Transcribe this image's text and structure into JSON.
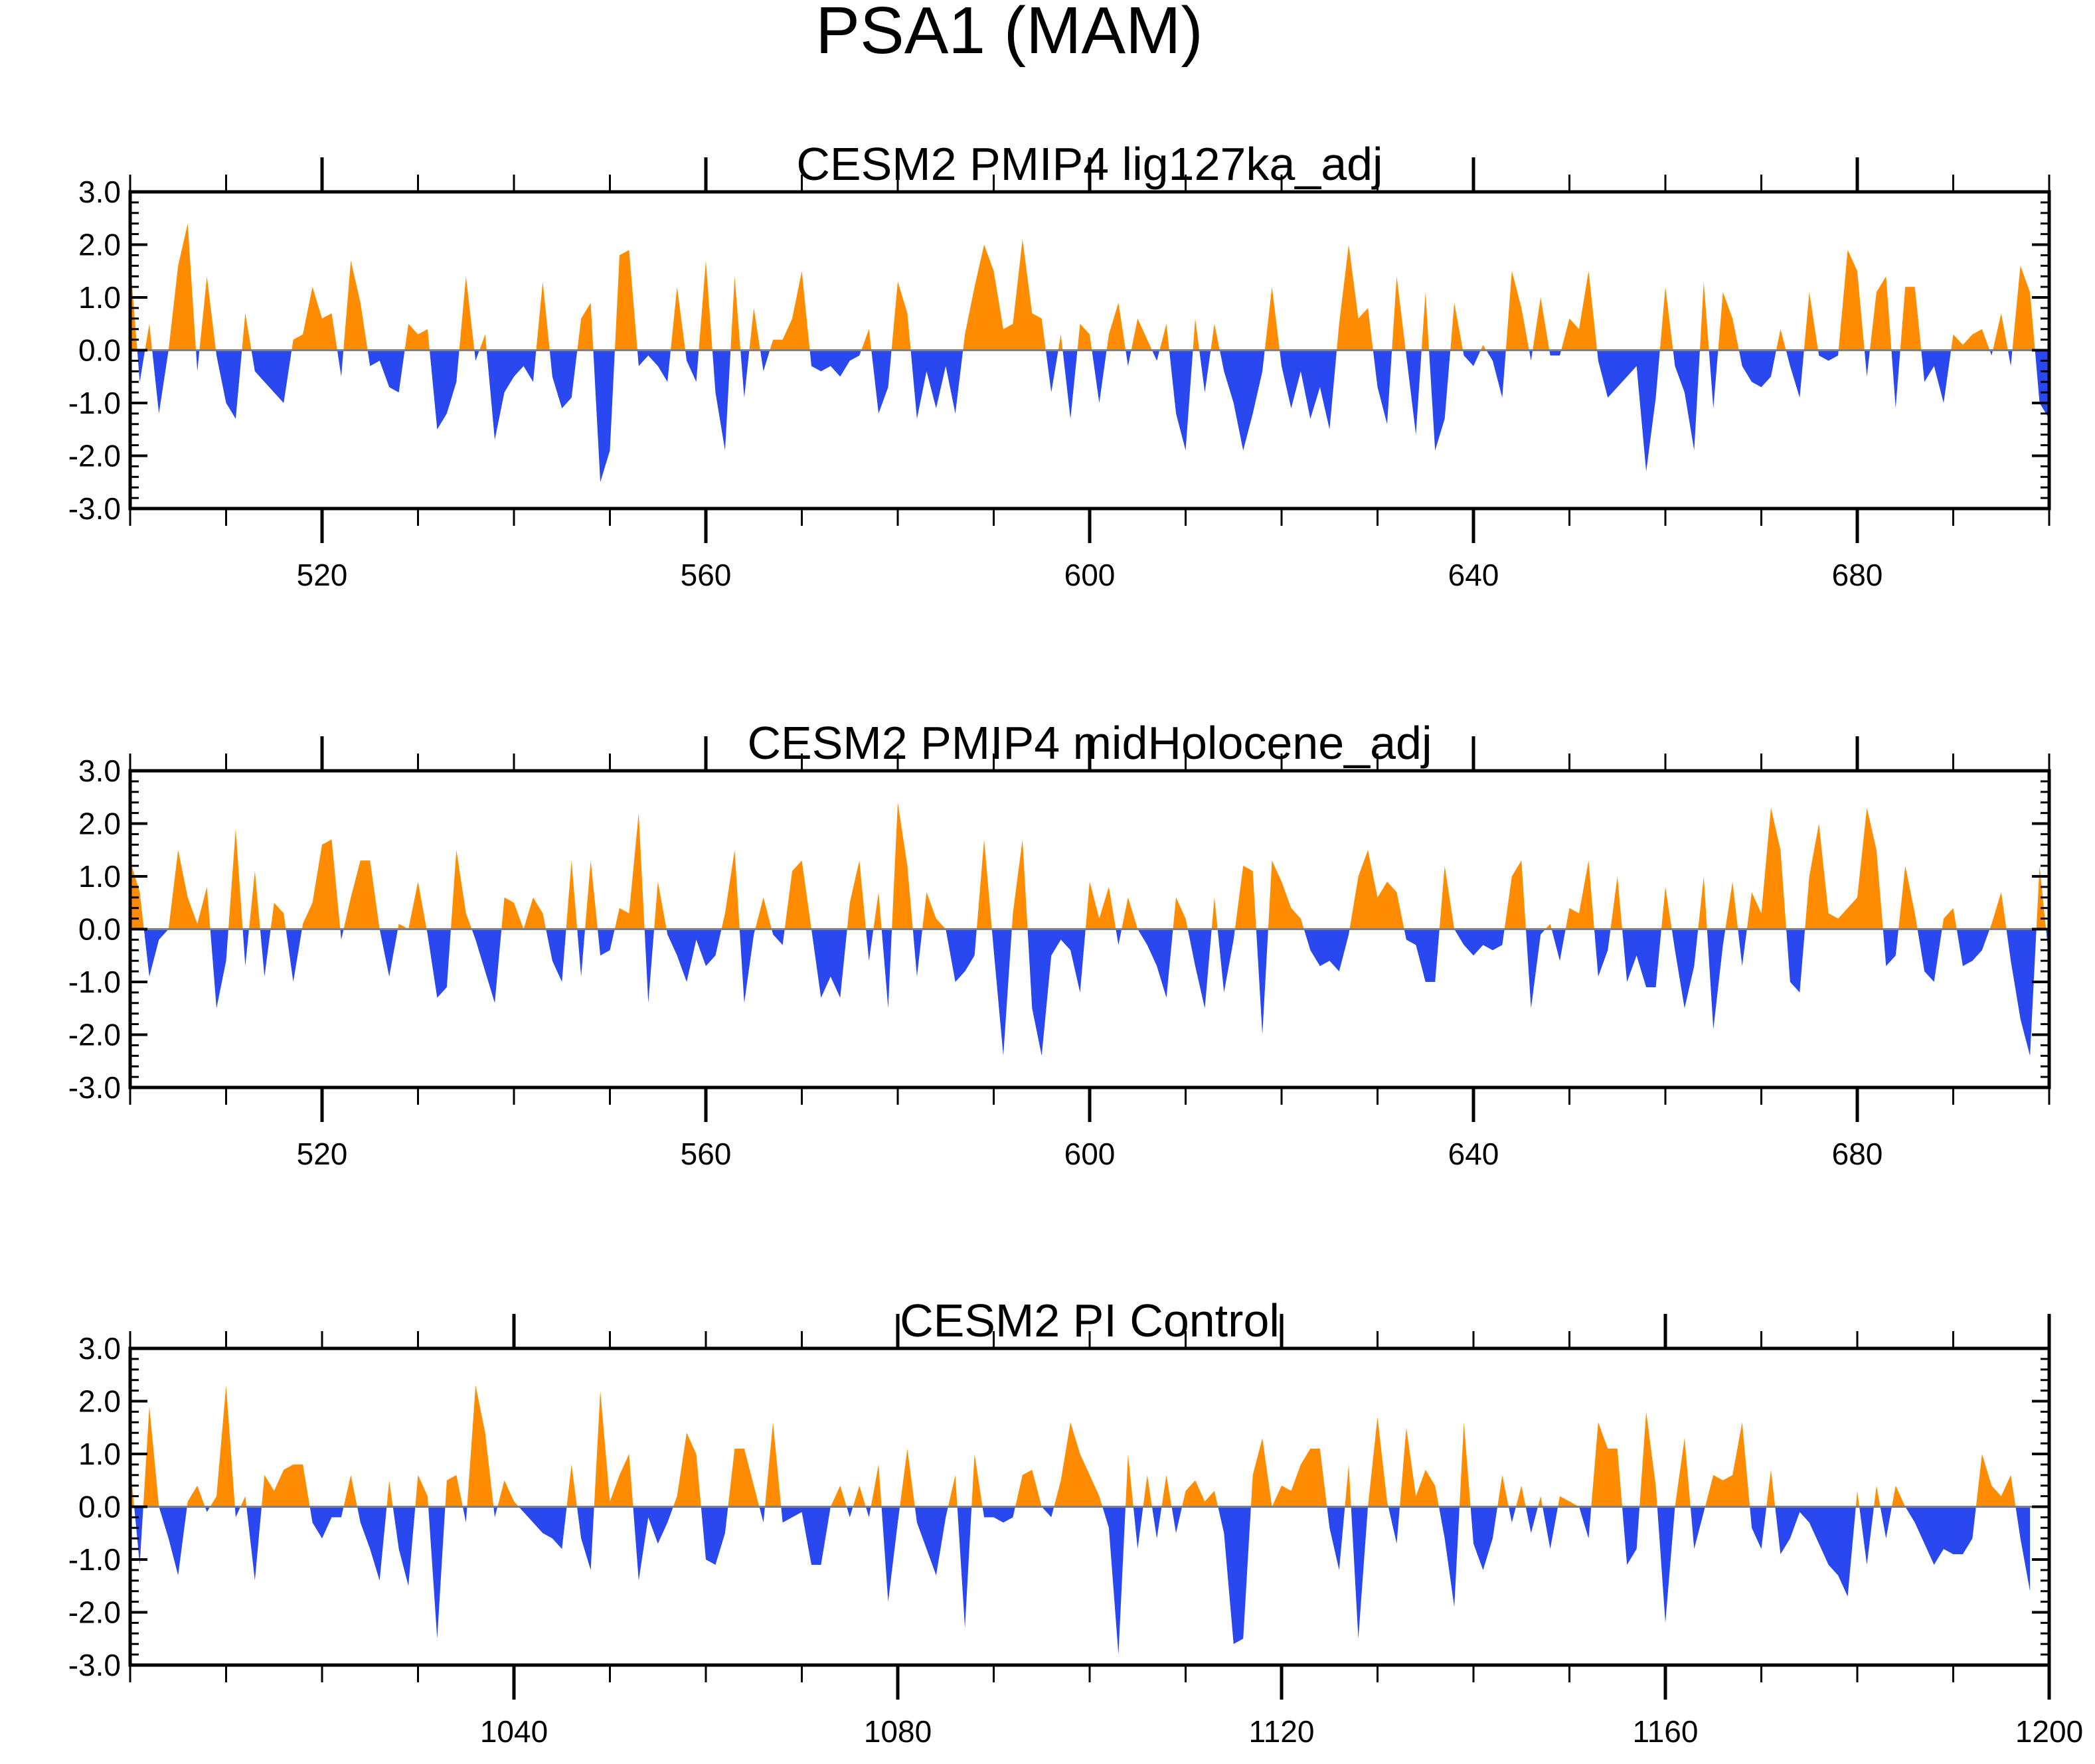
{
  "title": "PSA1 (MAM)",
  "colors": {
    "positive": "#ff8c00",
    "negative": "#2a48f0",
    "zero_line": "#808080"
  },
  "chart_data": [
    {
      "type": "area",
      "title": "CESM2 PMIP4 lig127ka_adj",
      "x_range": [
        500,
        700
      ],
      "x_major_ticks": [
        520,
        560,
        600,
        640,
        680
      ],
      "x_tick_labels": [
        "520",
        "560",
        "600",
        "640",
        "680"
      ],
      "ylim": [
        -3.0,
        3.0
      ],
      "y_tick_labels": [
        "3.0",
        "2.0",
        "1.0",
        "0.0",
        "-1.0",
        "-2.0",
        "-3.0"
      ],
      "x_start": 500,
      "values": [
        1.7,
        -0.6,
        0.5,
        -1.2,
        0.0,
        1.6,
        2.4,
        -0.4,
        1.4,
        -0.1,
        -1.0,
        -1.3,
        0.7,
        -0.4,
        -0.6,
        -0.8,
        -1.0,
        0.2,
        0.3,
        1.2,
        0.6,
        0.7,
        -0.5,
        1.7,
        0.9,
        -0.3,
        -0.2,
        -0.7,
        -0.8,
        0.5,
        0.3,
        0.4,
        -1.5,
        -1.2,
        -0.6,
        1.4,
        -0.2,
        0.3,
        -1.7,
        -0.8,
        -0.5,
        -0.3,
        -0.6,
        1.3,
        -0.5,
        -1.1,
        -0.9,
        0.6,
        0.9,
        -2.5,
        -1.9,
        1.8,
        1.9,
        -0.3,
        -0.1,
        -0.3,
        -0.6,
        1.2,
        -0.2,
        -0.6,
        1.7,
        -0.8,
        -1.9,
        1.4,
        -0.9,
        0.8,
        -0.4,
        0.2,
        0.2,
        0.6,
        1.5,
        -0.3,
        -0.4,
        -0.3,
        -0.5,
        -0.2,
        -0.1,
        0.4,
        -1.2,
        -0.7,
        1.3,
        0.7,
        -1.3,
        -0.4,
        -1.1,
        -0.3,
        -1.2,
        0.3,
        1.2,
        2.0,
        1.5,
        0.4,
        0.5,
        2.1,
        0.7,
        0.6,
        -0.8,
        0.3,
        -1.3,
        0.5,
        0.3,
        -1.0,
        0.3,
        0.9,
        -0.3,
        0.6,
        0.2,
        -0.2,
        0.5,
        -1.2,
        -1.9,
        0.6,
        -0.8,
        0.5,
        -0.4,
        -1.0,
        -1.9,
        -1.2,
        -0.4,
        1.2,
        -0.3,
        -1.1,
        -0.4,
        -1.3,
        -0.7,
        -1.5,
        0.5,
        2.0,
        0.6,
        0.8,
        -0.7,
        -1.4,
        1.4,
        -0.1,
        -1.6,
        1.1,
        -1.9,
        -1.3,
        0.9,
        -0.1,
        -0.3,
        0.1,
        -0.2,
        -0.9,
        1.5,
        0.8,
        -0.2,
        1.0,
        -0.1,
        -0.1,
        0.6,
        0.4,
        1.5,
        -0.2,
        -0.9,
        -0.7,
        -0.5,
        -0.3,
        -2.3,
        -0.9,
        1.2,
        -0.3,
        -0.8,
        -1.9,
        1.3,
        -1.1,
        1.1,
        0.6,
        -0.3,
        -0.6,
        -0.7,
        -0.5,
        0.4,
        -0.3,
        -0.9,
        1.1,
        -0.1,
        -0.2,
        -0.1,
        1.9,
        1.5,
        -0.5,
        1.1,
        1.4,
        -1.1,
        1.2,
        1.2,
        -0.6,
        -0.3,
        -1.0,
        0.3,
        0.1,
        0.3,
        0.4,
        -0.1,
        0.7,
        -0.3,
        1.6,
        1.1,
        -1.0,
        -1.3
      ]
    },
    {
      "type": "area",
      "title": "CESM2 PMIP4 midHolocene_adj",
      "x_range": [
        500,
        700
      ],
      "x_major_ticks": [
        520,
        560,
        600,
        640,
        680
      ],
      "x_tick_labels": [
        "520",
        "560",
        "600",
        "640",
        "680"
      ],
      "ylim": [
        -3.0,
        3.0
      ],
      "y_tick_labels": [
        "3.0",
        "2.0",
        "1.0",
        "0.0",
        "-1.0",
        "-2.0",
        "-3.0"
      ],
      "x_start": 500,
      "values": [
        1.3,
        0.7,
        -0.9,
        -0.2,
        0.0,
        1.5,
        0.6,
        0.1,
        0.8,
        -1.5,
        -0.6,
        1.9,
        -0.7,
        1.1,
        -0.9,
        0.5,
        0.3,
        -1.0,
        0.1,
        0.5,
        1.6,
        1.7,
        -0.2,
        0.6,
        1.3,
        1.3,
        0.0,
        -0.9,
        0.1,
        0.0,
        0.9,
        -0.1,
        -1.3,
        -1.1,
        1.5,
        0.3,
        -0.2,
        -0.8,
        -1.4,
        0.6,
        0.5,
        0.0,
        0.6,
        0.3,
        -0.6,
        -1.0,
        1.3,
        -0.9,
        1.3,
        -0.5,
        -0.4,
        0.4,
        0.3,
        2.2,
        -1.4,
        0.9,
        -0.1,
        -0.5,
        -1.0,
        -0.2,
        -0.7,
        -0.5,
        0.3,
        1.5,
        -1.4,
        -0.1,
        0.6,
        -0.1,
        -0.3,
        1.1,
        1.3,
        0.0,
        -1.3,
        -0.9,
        -1.3,
        0.5,
        1.3,
        -0.6,
        0.7,
        -1.5,
        2.4,
        1.2,
        -0.9,
        0.7,
        0.2,
        0.0,
        -1.0,
        -0.8,
        -0.5,
        1.7,
        -0.4,
        -2.4,
        0.3,
        1.7,
        -1.5,
        -2.4,
        -0.5,
        -0.2,
        -0.4,
        -1.2,
        0.9,
        0.2,
        0.8,
        -0.3,
        0.6,
        0.0,
        -0.3,
        -0.7,
        -1.3,
        0.6,
        0.2,
        -0.7,
        -1.5,
        0.6,
        -1.2,
        -0.2,
        1.2,
        1.1,
        -2.0,
        1.3,
        0.9,
        0.4,
        0.2,
        -0.4,
        -0.7,
        -0.6,
        -0.8,
        -0.1,
        1.0,
        1.5,
        0.6,
        0.9,
        0.7,
        -0.2,
        -0.3,
        -1.0,
        -1.0,
        1.2,
        0.0,
        -0.3,
        -0.5,
        -0.3,
        -0.4,
        -0.3,
        1.0,
        1.3,
        -1.5,
        -0.1,
        0.1,
        -0.6,
        0.4,
        0.3,
        1.3,
        -0.9,
        -0.4,
        1.0,
        -1.0,
        -0.5,
        -1.1,
        -1.1,
        0.8,
        -0.4,
        -1.5,
        -0.7,
        1.0,
        -1.9,
        -0.3,
        0.9,
        -0.7,
        0.7,
        0.3,
        2.3,
        1.5,
        -1.0,
        -1.2,
        1.0,
        2.0,
        0.3,
        0.2,
        0.4,
        0.6,
        2.3,
        1.5,
        -0.7,
        -0.5,
        1.2,
        0.3,
        -0.8,
        -1.0,
        0.2,
        0.4,
        -0.7,
        -0.6,
        -0.4,
        0.1,
        0.7,
        -0.6,
        -1.7,
        -2.4,
        1.2,
        -0.6,
        -1.5,
        -0.5,
        0.5,
        -1.6,
        -0.4,
        0.2,
        -1.0,
        -0.8,
        -0.4
      ]
    },
    {
      "type": "area",
      "title": "CESM2 PI Control",
      "x_range": [
        1000,
        1200
      ],
      "x_major_ticks": [
        1040,
        1080,
        1120,
        1160,
        1200
      ],
      "x_tick_labels": [
        "1040",
        "1080",
        "1120",
        "1160",
        "1200"
      ],
      "ylim": [
        -3.0,
        3.0
      ],
      "y_tick_labels": [
        "3.0",
        "2.0",
        "1.0",
        "0.0",
        "-1.0",
        "-2.0",
        "-3.0"
      ],
      "x_start": 1000,
      "values": [
        0.8,
        -1.1,
        1.9,
        0.0,
        -0.6,
        -1.3,
        0.1,
        0.4,
        -0.1,
        0.2,
        2.3,
        -0.2,
        0.2,
        -1.4,
        0.6,
        0.3,
        0.7,
        0.8,
        0.8,
        -0.3,
        -0.6,
        -0.2,
        -0.2,
        0.6,
        -0.3,
        -0.8,
        -1.4,
        0.5,
        -0.8,
        -1.5,
        0.6,
        0.2,
        -2.5,
        0.5,
        0.6,
        -0.3,
        2.3,
        1.4,
        -0.2,
        0.5,
        0.1,
        -0.1,
        -0.3,
        -0.5,
        -0.6,
        -0.8,
        0.8,
        -0.6,
        -1.2,
        2.2,
        0.1,
        0.6,
        1.0,
        -1.4,
        -0.2,
        -0.7,
        -0.3,
        0.2,
        1.4,
        1.0,
        -1.0,
        -1.1,
        -0.5,
        1.1,
        1.1,
        0.4,
        -0.3,
        1.6,
        -0.3,
        -0.2,
        -0.1,
        -1.1,
        -1.1,
        0.0,
        0.4,
        -0.2,
        0.4,
        -0.2,
        0.8,
        -1.8,
        -0.3,
        1.1,
        -0.3,
        -0.8,
        -1.3,
        -0.2,
        0.6,
        -2.3,
        1.0,
        -0.2,
        -0.2,
        -0.3,
        -0.2,
        0.6,
        0.7,
        0.0,
        -0.2,
        0.5,
        1.6,
        1.0,
        0.6,
        0.2,
        -0.4,
        -2.8,
        1.0,
        -0.8,
        0.6,
        -0.6,
        0.6,
        -0.5,
        0.3,
        0.5,
        0.1,
        0.3,
        -0.5,
        -2.6,
        -2.5,
        0.6,
        1.3,
        0.0,
        0.4,
        0.3,
        0.8,
        1.1,
        1.1,
        -0.4,
        -1.2,
        0.8,
        -2.5,
        0.0,
        1.7,
        0.1,
        -0.7,
        1.5,
        0.2,
        0.7,
        0.4,
        -0.6,
        -1.9,
        1.6,
        -0.7,
        -1.2,
        -0.6,
        0.6,
        -0.3,
        0.4,
        -0.5,
        0.2,
        -0.8,
        0.2,
        0.1,
        0.0,
        -0.6,
        1.6,
        1.1,
        1.1,
        -1.1,
        -0.8,
        1.8,
        0.4,
        -2.2,
        0.0,
        1.3,
        -0.8,
        -0.1,
        0.6,
        0.5,
        0.6,
        1.6,
        -0.4,
        -0.8,
        0.7,
        -0.9,
        -0.6,
        -0.1,
        -0.3,
        -0.7,
        -1.1,
        -1.3,
        -1.7,
        0.3,
        -1.1,
        0.4,
        -0.6,
        0.4,
        0.0,
        -0.3,
        -0.7,
        -1.1,
        -0.8,
        -0.9,
        -0.9,
        -0.6,
        1.0,
        0.4,
        0.2,
        0.6,
        -0.6,
        -1.6
      ]
    }
  ]
}
